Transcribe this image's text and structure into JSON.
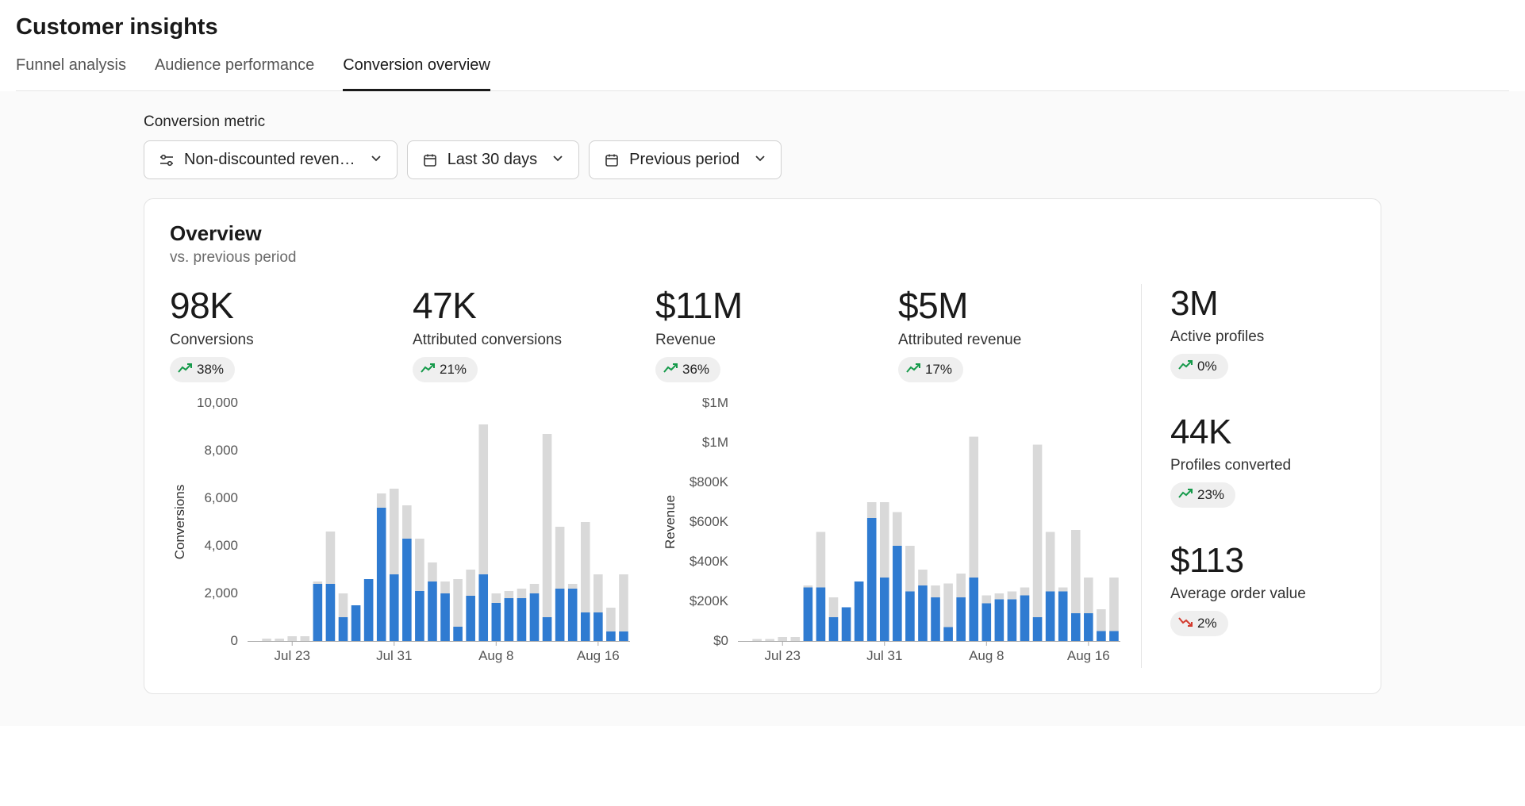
{
  "page": {
    "title": "Customer insights"
  },
  "tabs": [
    {
      "label": "Funnel analysis",
      "active": false
    },
    {
      "label": "Audience performance",
      "active": false
    },
    {
      "label": "Conversion overview",
      "active": true
    }
  ],
  "filters": {
    "label": "Conversion metric",
    "metric": "Non-discounted reven…",
    "date_range": "Last 30 days",
    "comparison": "Previous period"
  },
  "card": {
    "title": "Overview",
    "subtitle": "vs. previous period"
  },
  "metrics": {
    "conversions": {
      "value": "98K",
      "label": "Conversions",
      "delta": "38%",
      "trend": "up"
    },
    "attributed_conv": {
      "value": "47K",
      "label": "Attributed conversions",
      "delta": "21%",
      "trend": "up"
    },
    "revenue": {
      "value": "$11M",
      "label": "Revenue",
      "delta": "36%",
      "trend": "up"
    },
    "attributed_revenue": {
      "value": "$5M",
      "label": "Attributed revenue",
      "delta": "17%",
      "trend": "up"
    },
    "active_profiles": {
      "value": "3M",
      "label": "Active profiles",
      "delta": "0%",
      "trend": "up"
    },
    "profiles_converted": {
      "value": "44K",
      "label": "Profiles converted",
      "delta": "23%",
      "trend": "up"
    },
    "avg_order_value": {
      "value": "$113",
      "label": "Average order value",
      "delta": "2%",
      "trend": "down"
    }
  },
  "chart_conversions": {
    "type": "bar",
    "axis_label": "Conversions",
    "y_ticks": [
      "10,000",
      "8,000",
      "6,000",
      "4,000",
      "2,000",
      "0"
    ],
    "y_max": 10000,
    "x_ticks": [
      "Jul 23",
      "Jul 31",
      "Aug 8",
      "Aug 16"
    ],
    "x_tick_positions": [
      3,
      11,
      19,
      27
    ],
    "bar_color": "#2f7bd1",
    "bar_bg_color": "#d9d9d9",
    "tick_color": "#555555",
    "axis_color": "#aaaaaa",
    "background_color": "#ffffff",
    "bg_values": [
      0,
      100,
      100,
      200,
      200,
      2500,
      4600,
      2000,
      1500,
      2600,
      6200,
      6400,
      5700,
      4300,
      3300,
      2500,
      2600,
      3000,
      9100,
      2000,
      2100,
      2200,
      2400,
      8700,
      4800,
      2400,
      5000,
      2800,
      1400,
      2800
    ],
    "blue_values": [
      0,
      0,
      0,
      0,
      0,
      2400,
      2400,
      1000,
      1500,
      2600,
      5600,
      2800,
      4300,
      2100,
      2500,
      2000,
      600,
      1900,
      2800,
      1600,
      1800,
      1800,
      2000,
      1000,
      2200,
      2200,
      1200,
      1200,
      400,
      400
    ]
  },
  "chart_revenue": {
    "type": "bar",
    "axis_label": "Revenue",
    "y_ticks": [
      "$1M",
      "$1M",
      "$800K",
      "$600K",
      "$400K",
      "$200K",
      "$0"
    ],
    "y_max": 1200000,
    "x_ticks": [
      "Jul 23",
      "Jul 31",
      "Aug 8",
      "Aug 16"
    ],
    "x_tick_positions": [
      3,
      11,
      19,
      27
    ],
    "bar_color": "#2f7bd1",
    "bar_bg_color": "#d9d9d9",
    "tick_color": "#555555",
    "axis_color": "#aaaaaa",
    "background_color": "#ffffff",
    "bg_values": [
      0,
      10000,
      10000,
      20000,
      20000,
      280000,
      550000,
      220000,
      170000,
      300000,
      700000,
      700000,
      650000,
      480000,
      360000,
      280000,
      290000,
      340000,
      1030000,
      230000,
      240000,
      250000,
      270000,
      990000,
      550000,
      270000,
      560000,
      320000,
      160000,
      320000
    ],
    "blue_values": [
      0,
      0,
      0,
      0,
      0,
      270000,
      270000,
      120000,
      170000,
      300000,
      620000,
      320000,
      480000,
      250000,
      280000,
      220000,
      70000,
      220000,
      320000,
      190000,
      210000,
      210000,
      230000,
      120000,
      250000,
      250000,
      140000,
      140000,
      50000,
      50000
    ]
  }
}
